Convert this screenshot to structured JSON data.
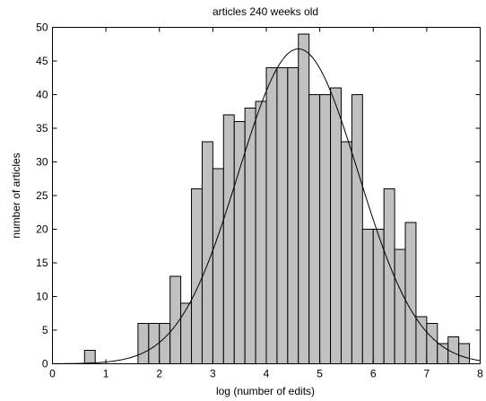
{
  "chart_data": {
    "type": "bar",
    "subtype": "histogram",
    "title": "articles 240 weeks old",
    "xlabel": "log (number of edits)",
    "ylabel": "number of articles",
    "xlim": [
      0,
      8
    ],
    "ylim": [
      0,
      50
    ],
    "xticks": [
      0,
      1,
      2,
      3,
      4,
      5,
      6,
      7,
      8
    ],
    "yticks": [
      0,
      5,
      10,
      15,
      20,
      25,
      30,
      35,
      40,
      45,
      50
    ],
    "grid": false,
    "bin_width": 0.2,
    "bins": [
      {
        "x_start": 0.6,
        "value": 2
      },
      {
        "x_start": 1.6,
        "value": 6
      },
      {
        "x_start": 1.8,
        "value": 6
      },
      {
        "x_start": 2.0,
        "value": 6
      },
      {
        "x_start": 2.2,
        "value": 13
      },
      {
        "x_start": 2.4,
        "value": 9
      },
      {
        "x_start": 2.6,
        "value": 26
      },
      {
        "x_start": 2.8,
        "value": 33
      },
      {
        "x_start": 3.0,
        "value": 29
      },
      {
        "x_start": 3.2,
        "value": 37
      },
      {
        "x_start": 3.4,
        "value": 36
      },
      {
        "x_start": 3.6,
        "value": 38
      },
      {
        "x_start": 3.8,
        "value": 39
      },
      {
        "x_start": 4.0,
        "value": 44
      },
      {
        "x_start": 4.2,
        "value": 44
      },
      {
        "x_start": 4.4,
        "value": 44
      },
      {
        "x_start": 4.6,
        "value": 49
      },
      {
        "x_start": 4.8,
        "value": 40
      },
      {
        "x_start": 5.0,
        "value": 40
      },
      {
        "x_start": 5.2,
        "value": 41
      },
      {
        "x_start": 5.4,
        "value": 33
      },
      {
        "x_start": 5.6,
        "value": 40
      },
      {
        "x_start": 5.8,
        "value": 20
      },
      {
        "x_start": 6.0,
        "value": 20
      },
      {
        "x_start": 6.2,
        "value": 26
      },
      {
        "x_start": 6.4,
        "value": 17
      },
      {
        "x_start": 6.6,
        "value": 21
      },
      {
        "x_start": 6.8,
        "value": 7
      },
      {
        "x_start": 7.0,
        "value": 6
      },
      {
        "x_start": 7.2,
        "value": 3
      },
      {
        "x_start": 7.4,
        "value": 4
      },
      {
        "x_start": 7.6,
        "value": 3
      }
    ],
    "fit_curve": {
      "type": "gaussian",
      "peak": 46.8,
      "mean": 4.6,
      "std": 1.12
    }
  }
}
